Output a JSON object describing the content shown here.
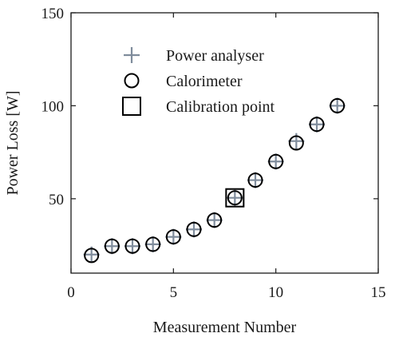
{
  "chart_data": {
    "type": "scatter",
    "xlabel": "Measurement Number",
    "ylabel": "Power Loss [W]",
    "xlim": [
      0,
      15
    ],
    "ylim": [
      10,
      150
    ],
    "xticks": [
      0,
      5,
      10,
      15
    ],
    "yticks": [
      50,
      100,
      150
    ],
    "grid": false,
    "legend": {
      "placement": "top-left",
      "entries": [
        {
          "label": "Power analyser",
          "marker": "plus"
        },
        {
          "label": "Calorimeter",
          "marker": "circle"
        },
        {
          "label": "Calibration point",
          "marker": "square"
        }
      ]
    },
    "series": [
      {
        "name": "Power analyser",
        "marker": "plus",
        "color": "#7f8c9c",
        "x": [
          1,
          2,
          3,
          4,
          5,
          6,
          7,
          8,
          9,
          10,
          11,
          12,
          13
        ],
        "y": [
          20,
          24.5,
          24.5,
          25.5,
          29.5,
          33.5,
          38.5,
          50.5,
          60,
          70,
          81,
          90,
          100
        ]
      },
      {
        "name": "Calorimeter",
        "marker": "circle",
        "color": "#000000",
        "x": [
          1,
          2,
          3,
          4,
          5,
          6,
          7,
          8,
          9,
          10,
          11,
          12,
          13
        ],
        "y": [
          19.5,
          24.5,
          24.5,
          25.5,
          29.5,
          33.5,
          38.5,
          50.5,
          60,
          70,
          80,
          90,
          100
        ]
      },
      {
        "name": "Calibration point",
        "marker": "square",
        "color": "#000000",
        "x": [
          8
        ],
        "y": [
          50.5
        ]
      }
    ]
  }
}
